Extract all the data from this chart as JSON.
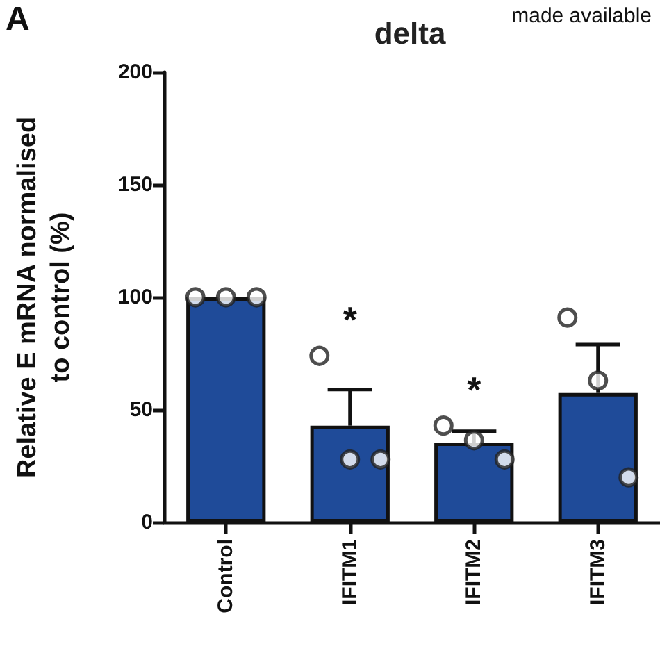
{
  "chart_data": {
    "type": "bar",
    "title": "delta",
    "ylabel": "Relative E mRNA normalised\nto control (%)",
    "categories": [
      "Control",
      "IFITM1",
      "IFITM2",
      "IFITM3"
    ],
    "series": [
      {
        "color": "#1f4b99",
        "values": [
          100,
          43,
          35.5,
          57.5
        ],
        "errors": [
          null,
          [
            43,
            59
          ],
          [
            35.5,
            40.5
          ],
          [
            57.5,
            79
          ]
        ]
      },
      {
        "type": "scatter",
        "color": "#ffffff",
        "x": [
          "Control",
          "Control",
          "Control",
          "IFITM1",
          "IFITM1",
          "IFITM1",
          "IFITM2",
          "IFITM2",
          "IFITM2",
          "IFITM3",
          "IFITM3",
          "IFITM3"
        ],
        "values": [
          100,
          100,
          100,
          74,
          28,
          28,
          43,
          36.5,
          28,
          91,
          63,
          20
        ]
      }
    ],
    "ylim": [
      0,
      200
    ],
    "yticks": [
      0,
      50,
      100,
      150,
      200
    ],
    "grid": false,
    "marker": "circle",
    "annotations": [
      "A",
      "made available",
      "*",
      "*"
    ]
  }
}
